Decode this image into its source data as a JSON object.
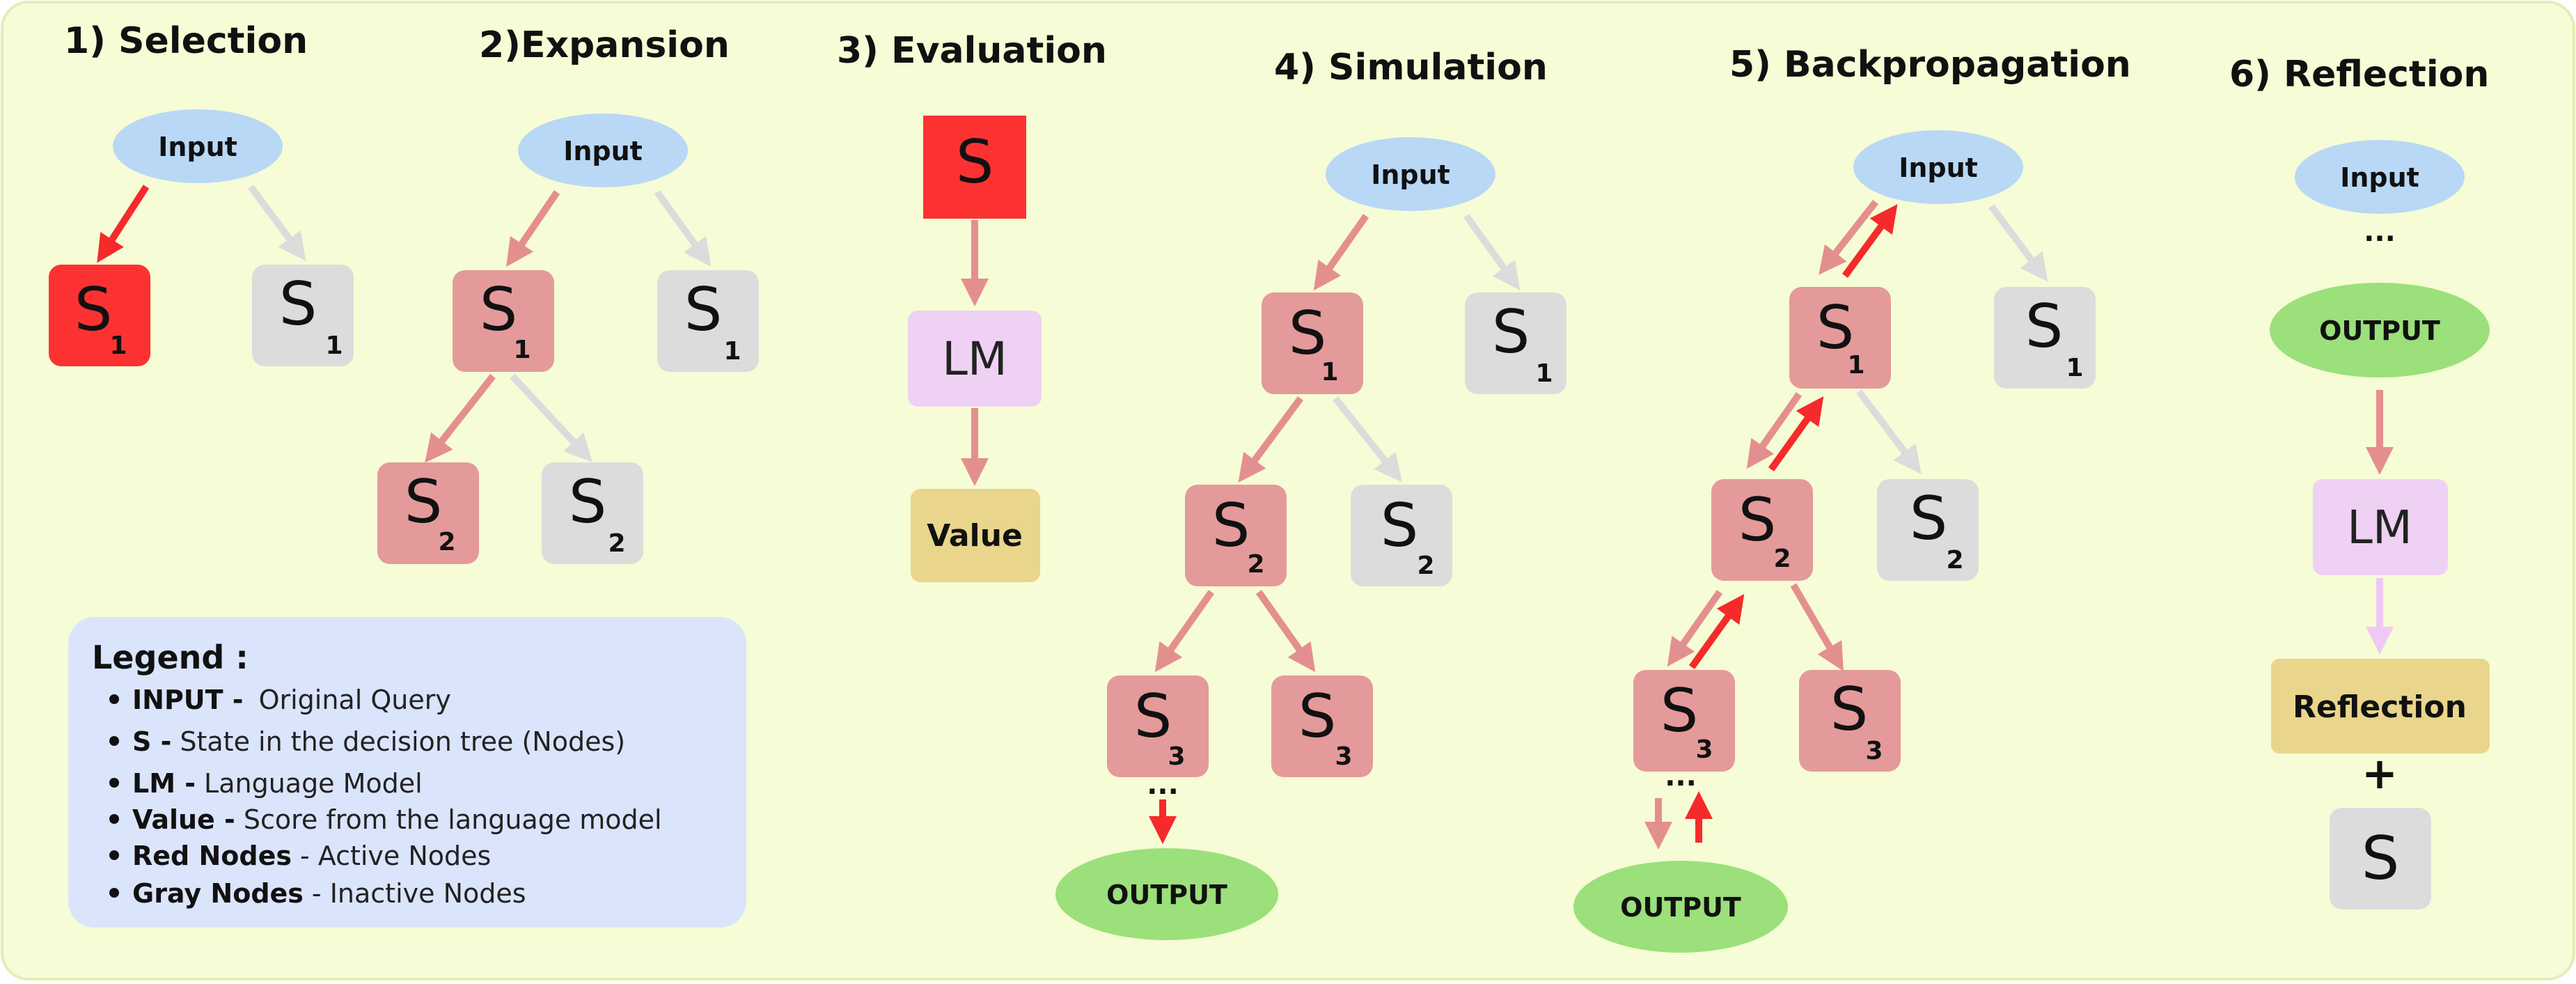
{
  "colors": {
    "background": "#f6fcd5",
    "border": "#e4ecb8",
    "active_node": "#e49a9a",
    "active_selected": "#fc3232",
    "inactive_node": "#dcdcdc",
    "input_oval": "#b8d8f6",
    "output_oval": "#9be07a",
    "lm_box": "#efd2f3",
    "value_box": "#e9d68c",
    "legend_box": "#dae4fb",
    "arrow_active": "#e48f8f",
    "arrow_inactive": "#dcdcdc",
    "arrow_red": "#f52a2a",
    "arrow_lm": "#efc9f3"
  },
  "panels": {
    "selection": {
      "title": "1) Selection",
      "input": "Input",
      "s": "S",
      "sub": "1"
    },
    "expansion": {
      "title": "2)Expansion",
      "input": "Input",
      "s": "S",
      "sub1": "1",
      "sub2": "2"
    },
    "evaluation": {
      "title": "3) Evaluation",
      "s": "S",
      "lm": "LM",
      "value": "Value"
    },
    "simulation": {
      "title": "4) Simulation",
      "input": "Input",
      "s": "S",
      "sub1": "1",
      "sub2": "2",
      "sub3": "3",
      "dots": "...",
      "output": "OUTPUT"
    },
    "backprop": {
      "title": "5) Backpropagation",
      "input": "Input",
      "s": "S",
      "sub1": "1",
      "sub2": "2",
      "sub3": "3",
      "dots": "...",
      "output": "OUTPUT"
    },
    "reflection": {
      "title": "6) Reflection",
      "input": "Input",
      "dots": "...",
      "output": "OUTPUT",
      "lm": "LM",
      "reflection": "Reflection",
      "plus": "+",
      "s": "S"
    }
  },
  "legend": {
    "title": "Legend :",
    "items": [
      {
        "key": "INPUT -",
        "value": "Original Query"
      },
      {
        "key": "S -",
        "value": "State in the decision tree (Nodes)"
      },
      {
        "key": "LM -",
        "value": "Language Model"
      },
      {
        "key": "Value -",
        "value": "Score from the language model"
      },
      {
        "key": "Red Nodes",
        "value": "- Active Nodes"
      },
      {
        "key": "Gray Nodes",
        "value": "- Inactive Nodes"
      }
    ]
  }
}
